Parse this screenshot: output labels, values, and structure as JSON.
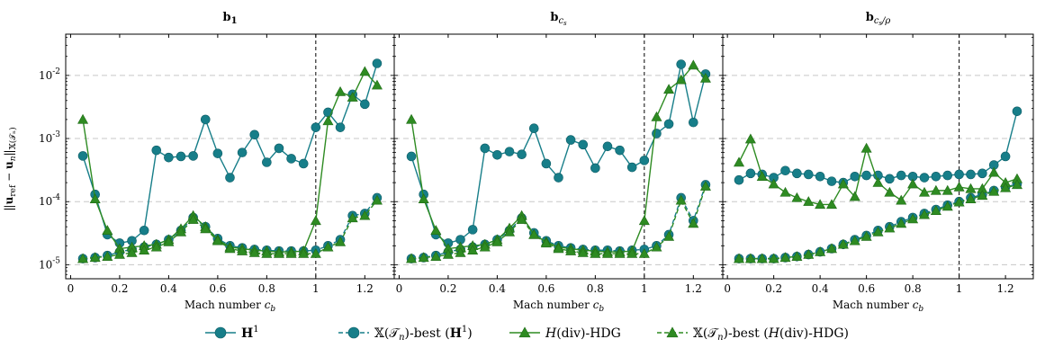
{
  "colors": {
    "teal": "#177e89",
    "green": "#2e8b22",
    "grid": "#c8c8c8",
    "frame": "#000000"
  },
  "legend": [
    {
      "label": "H¹",
      "color": "#177e89",
      "marker": "circle",
      "dash": false
    },
    {
      "label": "𝕏(𝒯ₙ)-best (H¹)",
      "color": "#177e89",
      "marker": "circle",
      "dash": true
    },
    {
      "label": "H(div)-HDG",
      "color": "#2e8b22",
      "marker": "triangle",
      "dash": false
    },
    {
      "label": "𝕏(𝒯ₙ)-best (H(div)-HDG)",
      "color": "#2e8b22",
      "marker": "triangle",
      "dash": true
    }
  ],
  "chart_data": [
    {
      "type": "line",
      "title": "b₁",
      "xlabel": "Mach number c_b",
      "ylabel": "‖u_ref − u_n‖_𝕏(𝒯ₙ)",
      "yscale": "log",
      "xlim": [
        -0.02,
        1.32
      ],
      "ylim": [
        6e-06,
        0.045
      ],
      "x_ticks": [
        "0",
        "0.2",
        "0.4",
        "0.6",
        "0.8",
        "1",
        "1.2"
      ],
      "y_ticks": [
        "10⁻⁵",
        "10⁻⁴",
        "10⁻³",
        "10⁻²"
      ],
      "grid": "horizontal dashed",
      "vline": 1,
      "x": [
        0.05,
        0.1,
        0.15,
        0.2,
        0.25,
        0.3,
        0.35,
        0.4,
        0.45,
        0.5,
        0.55,
        0.6,
        0.65,
        0.7,
        0.75,
        0.8,
        0.85,
        0.9,
        0.95,
        1.0,
        1.05,
        1.1,
        1.15,
        1.2,
        1.25
      ],
      "series": [
        {
          "name": "H¹",
          "values": [
            0.00053,
            0.00013,
            3e-05,
            2.2e-05,
            2.4e-05,
            3.5e-05,
            0.00065,
            0.0005,
            0.00052,
            0.00053,
            0.002,
            0.00058,
            0.00024,
            0.0006,
            0.00115,
            0.00042,
            0.0007,
            0.00048,
            0.0004,
            0.0015,
            0.0026,
            0.0015,
            0.005,
            0.0035,
            0.0155
          ]
        },
        {
          "name": "𝕏(𝒯ₙ)-best (H¹)",
          "values": [
            1.25e-05,
            1.3e-05,
            1.4e-05,
            1.6e-05,
            1.75e-05,
            1.9e-05,
            2.1e-05,
            2.5e-05,
            3.5e-05,
            5.6e-05,
            4e-05,
            2.6e-05,
            2e-05,
            1.85e-05,
            1.75e-05,
            1.7e-05,
            1.65e-05,
            1.65e-05,
            1.65e-05,
            1.7e-05,
            2e-05,
            2.5e-05,
            6e-05,
            6.5e-05,
            0.000115
          ]
        },
        {
          "name": "H(div)-HDG",
          "values": [
            0.002,
            0.00011,
            3.5e-05,
            1.8e-05,
            1.9e-05,
            2e-05,
            2.1e-05,
            2.5e-05,
            3.7e-05,
            6e-05,
            4e-05,
            2.5e-05,
            1.9e-05,
            1.8e-05,
            1.7e-05,
            1.65e-05,
            1.6e-05,
            1.6e-05,
            1.65e-05,
            5e-05,
            0.0019,
            0.0055,
            0.0045,
            0.0115,
            0.007
          ]
        },
        {
          "name": "𝕏(𝒯ₙ)-best (H(div)-HDG)",
          "values": [
            1.25e-05,
            1.3e-05,
            1.35e-05,
            1.45e-05,
            1.55e-05,
            1.7e-05,
            1.9e-05,
            2.3e-05,
            3.3e-05,
            5.2e-05,
            3.7e-05,
            2.4e-05,
            1.8e-05,
            1.65e-05,
            1.55e-05,
            1.5e-05,
            1.5e-05,
            1.5e-05,
            1.5e-05,
            1.5e-05,
            1.9e-05,
            2.3e-05,
            5.5e-05,
            6e-05,
            0.000105
          ]
        }
      ]
    },
    {
      "type": "line",
      "title": "b_{c_s}",
      "xlabel": "Mach number c_b",
      "yscale": "log",
      "xlim": [
        -0.02,
        1.32
      ],
      "ylim": [
        6e-06,
        0.045
      ],
      "x_ticks": [
        "0",
        "0.2",
        "0.4",
        "0.6",
        "0.8",
        "1",
        "1.2"
      ],
      "grid": "horizontal dashed",
      "vline": 1,
      "x": [
        0.05,
        0.1,
        0.15,
        0.2,
        0.25,
        0.3,
        0.35,
        0.4,
        0.45,
        0.5,
        0.55,
        0.6,
        0.65,
        0.7,
        0.75,
        0.8,
        0.85,
        0.9,
        0.95,
        1.0,
        1.05,
        1.1,
        1.15,
        1.2,
        1.25
      ],
      "series": [
        {
          "name": "H¹",
          "values": [
            0.00052,
            0.00013,
            3e-05,
            2.2e-05,
            2.5e-05,
            3.6e-05,
            0.0007,
            0.00055,
            0.00062,
            0.00056,
            0.00145,
            0.0004,
            0.00024,
            0.00095,
            0.0008,
            0.00034,
            0.00075,
            0.00065,
            0.00035,
            0.00045,
            0.0012,
            0.0017,
            0.015,
            0.0018,
            0.0105
          ]
        },
        {
          "name": "𝕏(𝒯ₙ)-best (H¹)",
          "values": [
            1.25e-05,
            1.3e-05,
            1.4e-05,
            1.6e-05,
            1.75e-05,
            1.9e-05,
            2.1e-05,
            2.5e-05,
            3.5e-05,
            5.5e-05,
            3.2e-05,
            2.4e-05,
            2e-05,
            1.85e-05,
            1.75e-05,
            1.7e-05,
            1.7e-05,
            1.65e-05,
            1.7e-05,
            1.75e-05,
            2e-05,
            3e-05,
            0.000115,
            5e-05,
            0.000185
          ]
        },
        {
          "name": "H(div)-HDG",
          "values": [
            0.002,
            0.00011,
            3.5e-05,
            1.8e-05,
            1.9e-05,
            2e-05,
            2.1e-05,
            2.5e-05,
            3.8e-05,
            6e-05,
            3e-05,
            2.3e-05,
            1.9e-05,
            1.8e-05,
            1.7e-05,
            1.65e-05,
            1.6e-05,
            1.6e-05,
            1.65e-05,
            5e-05,
            0.0022,
            0.006,
            0.0085,
            0.0145,
            0.009
          ]
        },
        {
          "name": "𝕏(𝒯ₙ)-best (H(div)-HDG)",
          "values": [
            1.25e-05,
            1.3e-05,
            1.35e-05,
            1.45e-05,
            1.55e-05,
            1.7e-05,
            1.9e-05,
            2.3e-05,
            3.3e-05,
            5.2e-05,
            3e-05,
            2.2e-05,
            1.8e-05,
            1.65e-05,
            1.55e-05,
            1.5e-05,
            1.5e-05,
            1.5e-05,
            1.5e-05,
            1.5e-05,
            1.9e-05,
            2.8e-05,
            0.000105,
            4.5e-05,
            0.000175
          ]
        }
      ]
    },
    {
      "type": "line",
      "title": "b_{c_s/ρ}",
      "xlabel": "Mach number c_b",
      "yscale": "log",
      "xlim": [
        -0.02,
        1.32
      ],
      "ylim": [
        6e-06,
        0.045
      ],
      "x_ticks": [
        "0",
        "0.2",
        "0.4",
        "0.6",
        "0.8",
        "1",
        "1.2"
      ],
      "grid": "horizontal dashed",
      "vline": 1,
      "x": [
        0.05,
        0.1,
        0.15,
        0.2,
        0.25,
        0.3,
        0.35,
        0.4,
        0.45,
        0.5,
        0.55,
        0.6,
        0.65,
        0.7,
        0.75,
        0.8,
        0.85,
        0.9,
        0.95,
        1.0,
        1.05,
        1.1,
        1.15,
        1.2,
        1.25
      ],
      "series": [
        {
          "name": "H¹",
          "values": [
            0.00022,
            0.00028,
            0.00027,
            0.00024,
            0.00031,
            0.00028,
            0.00027,
            0.00025,
            0.00021,
            0.0002,
            0.00025,
            0.00026,
            0.00026,
            0.00023,
            0.00026,
            0.00025,
            0.00024,
            0.00025,
            0.00026,
            0.00027,
            0.00027,
            0.00028,
            0.00038,
            0.00052,
            0.0027
          ]
        },
        {
          "name": "𝕏(𝒯ₙ)-best (H¹)",
          "values": [
            1.25e-05,
            1.25e-05,
            1.25e-05,
            1.25e-05,
            1.3e-05,
            1.35e-05,
            1.45e-05,
            1.6e-05,
            1.8e-05,
            2.1e-05,
            2.5e-05,
            2.9e-05,
            3.5e-05,
            4e-05,
            4.8e-05,
            5.6e-05,
            6.5e-05,
            7.5e-05,
            8.8e-05,
            0.0001,
            0.000115,
            0.00013,
            0.00015,
            0.00017,
            0.00019
          ]
        },
        {
          "name": "H(div)-HDG",
          "values": [
            0.00042,
            0.00098,
            0.00025,
            0.00019,
            0.00014,
            0.000115,
            0.0001,
            9e-05,
            9e-05,
            0.00019,
            0.00012,
            0.0007,
            0.0002,
            0.00014,
            0.000105,
            0.00019,
            0.00014,
            0.00015,
            0.00015,
            0.00017,
            0.00016,
            0.00016,
            0.00029,
            0.0002,
            0.00023
          ]
        },
        {
          "name": "𝕏(𝒯ₙ)-best (H(div)-HDG)",
          "values": [
            1.25e-05,
            1.25e-05,
            1.25e-05,
            1.25e-05,
            1.3e-05,
            1.35e-05,
            1.45e-05,
            1.6e-05,
            1.8e-05,
            2.1e-05,
            2.4e-05,
            2.8e-05,
            3.3e-05,
            3.8e-05,
            4.5e-05,
            5.3e-05,
            6.2e-05,
            7.2e-05,
            8.4e-05,
            9.8e-05,
            0.00011,
            0.000125,
            0.000145,
            0.000165,
            0.000185
          ]
        }
      ]
    }
  ]
}
